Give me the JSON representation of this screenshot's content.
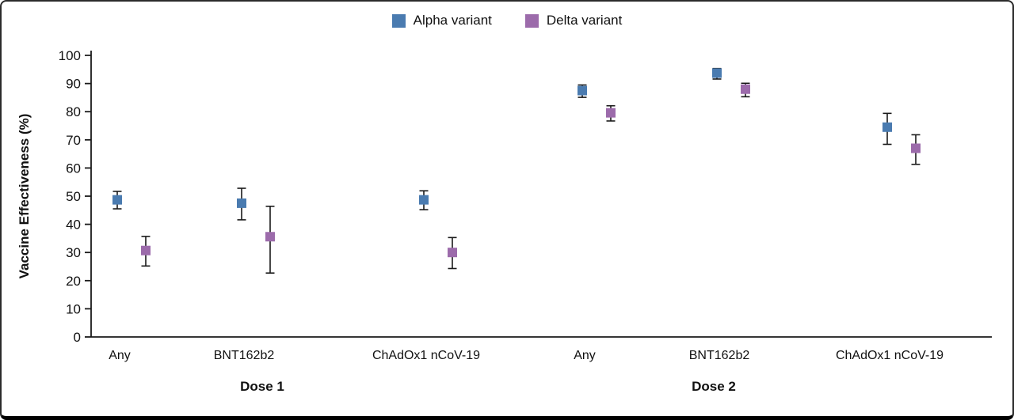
{
  "figure": {
    "y_axis_label": "Vaccine Effectiveness (%)",
    "group_labels": [
      "Dose 1",
      "Dose 2"
    ],
    "axis_color": "#1a1a1a",
    "errorbar_color": "#1a1a1a"
  },
  "chart_data": {
    "type": "scatter",
    "title": "",
    "xlabel": "",
    "ylabel": "Vaccine Effectiveness (%)",
    "ylim": [
      0,
      100
    ],
    "ytick_step": 10,
    "grid": false,
    "legend_position": "top-center",
    "categories": [
      {
        "label": "Any",
        "group": "Dose 1"
      },
      {
        "label": "BNT162b2",
        "group": "Dose 1"
      },
      {
        "label": "ChAdOx1 nCoV-19",
        "group": "Dose 1"
      },
      {
        "label": "Any",
        "group": "Dose 2"
      },
      {
        "label": "BNT162b2",
        "group": "Dose 2"
      },
      {
        "label": "ChAdOx1 nCoV-19",
        "group": "Dose 2"
      }
    ],
    "series": [
      {
        "name": "Alpha variant",
        "color": "#4a7bb0",
        "marker": "square",
        "values": [
          48.7,
          47.5,
          48.7,
          87.5,
          93.7,
          74.5
        ],
        "ci_low": [
          45.5,
          41.6,
          45.2,
          85.1,
          91.6,
          68.4
        ],
        "ci_high": [
          51.7,
          52.8,
          51.9,
          89.5,
          95.3,
          79.4
        ]
      },
      {
        "name": "Delta variant",
        "color": "#9c6bab",
        "marker": "square",
        "values": [
          30.7,
          35.6,
          30.0,
          79.6,
          88.0,
          67.0
        ],
        "ci_low": [
          25.2,
          22.7,
          24.3,
          76.7,
          85.3,
          61.3
        ],
        "ci_high": [
          35.7,
          46.4,
          35.3,
          82.1,
          90.1,
          71.8
        ]
      }
    ]
  }
}
